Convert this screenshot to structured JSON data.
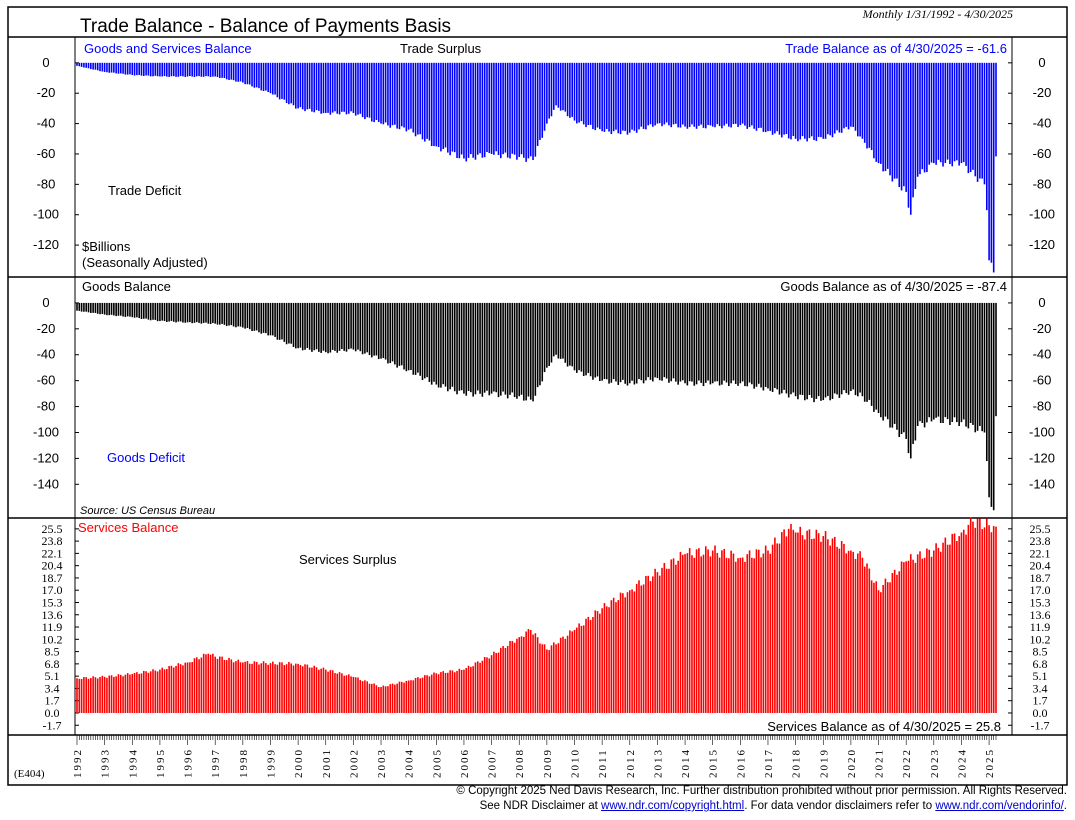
{
  "header": {
    "title": "Trade Balance - Balance of Payments Basis",
    "range": "Monthly 1/31/1992 - 4/30/2025",
    "code": "(E404)"
  },
  "footer": {
    "line1": "© Copyright 2025 Ned Davis Research, Inc.  Further distribution prohibited without prior permission.  All Rights Reserved.",
    "line2_pre": "See NDR Disclaimer at ",
    "link1": "www.ndr.com/copyright.html",
    "line2_mid": ". For data vendor disclaimers refer to ",
    "link2": "www.ndr.com/vendorinfo/",
    "line2_post": "."
  },
  "chart_data": [
    {
      "type": "bar",
      "name": "trade",
      "title": "Goods and Services Balance",
      "annotations": [
        "Trade Surplus",
        "Trade Deficit",
        "$Billions",
        "(Seasonally Adjusted)"
      ],
      "latest_label": "Trade Balance as of 4/30/2025 = -61.6",
      "color": "#0000ff",
      "title_color": "#0000ff",
      "ylim": [
        -141,
        17
      ],
      "yticks": [
        "0",
        "-20",
        "-40",
        "-60",
        "-80",
        "-100",
        "-120"
      ],
      "ytick_values": [
        0,
        -20,
        -40,
        -60,
        -80,
        -100,
        -120
      ],
      "anchors": [
        [
          "1992-01",
          -2
        ],
        [
          "1993-01",
          -6
        ],
        [
          "1994-01",
          -8
        ],
        [
          "1995-01",
          -9
        ],
        [
          "1996-01",
          -9
        ],
        [
          "1997-01",
          -9
        ],
        [
          "1998-01",
          -13
        ],
        [
          "1999-01",
          -20
        ],
        [
          "2000-01",
          -30
        ],
        [
          "2001-01",
          -33
        ],
        [
          "2002-01",
          -33
        ],
        [
          "2003-01",
          -40
        ],
        [
          "2004-01",
          -44
        ],
        [
          "2005-01",
          -55
        ],
        [
          "2006-01",
          -63
        ],
        [
          "2007-01",
          -60
        ],
        [
          "2008-01",
          -62
        ],
        [
          "2008-07",
          -64
        ],
        [
          "2009-01",
          -40
        ],
        [
          "2009-05",
          -28
        ],
        [
          "2010-01",
          -38
        ],
        [
          "2011-01",
          -45
        ],
        [
          "2012-01",
          -46
        ],
        [
          "2013-01",
          -40
        ],
        [
          "2014-01",
          -42
        ],
        [
          "2015-01",
          -42
        ],
        [
          "2016-01",
          -41
        ],
        [
          "2017-01",
          -45
        ],
        [
          "2018-01",
          -50
        ],
        [
          "2019-01",
          -50
        ],
        [
          "2020-01",
          -42
        ],
        [
          "2020-06",
          -50
        ],
        [
          "2021-01",
          -66
        ],
        [
          "2022-01",
          -85
        ],
        [
          "2022-03",
          -100
        ],
        [
          "2022-06",
          -75
        ],
        [
          "2023-01",
          -66
        ],
        [
          "2024-01",
          -66
        ],
        [
          "2024-11",
          -80
        ],
        [
          "2024-12",
          -97
        ],
        [
          "2025-01",
          -130
        ],
        [
          "2025-03",
          -138
        ],
        [
          "2025-04",
          -61.6
        ]
      ]
    },
    {
      "type": "bar",
      "name": "goods",
      "title": "Goods Balance",
      "annotations": [
        "Goods Deficit",
        "Source: US Census Bureau"
      ],
      "latest_label": "Goods Balance as of 4/30/2025 = -87.4",
      "color": "#000000",
      "title_color": "#000000",
      "ylim": [
        -166,
        20
      ],
      "yticks": [
        "0",
        "-20",
        "-40",
        "-60",
        "-80",
        "-100",
        "-120",
        "-140"
      ],
      "ytick_values": [
        0,
        -20,
        -40,
        -60,
        -80,
        -100,
        -120,
        -140
      ],
      "anchors": [
        [
          "1992-01",
          -6
        ],
        [
          "1993-01",
          -9
        ],
        [
          "1994-01",
          -11
        ],
        [
          "1995-01",
          -14
        ],
        [
          "1996-01",
          -15
        ],
        [
          "1997-01",
          -16
        ],
        [
          "1998-01",
          -19
        ],
        [
          "1999-01",
          -25
        ],
        [
          "2000-01",
          -35
        ],
        [
          "2001-01",
          -38
        ],
        [
          "2002-01",
          -36
        ],
        [
          "2003-01",
          -43
        ],
        [
          "2004-01",
          -52
        ],
        [
          "2005-01",
          -63
        ],
        [
          "2006-01",
          -70
        ],
        [
          "2007-01",
          -70
        ],
        [
          "2008-01",
          -72
        ],
        [
          "2008-07",
          -76
        ],
        [
          "2009-01",
          -50
        ],
        [
          "2009-05",
          -40
        ],
        [
          "2010-01",
          -52
        ],
        [
          "2011-01",
          -60
        ],
        [
          "2012-01",
          -62
        ],
        [
          "2013-01",
          -58
        ],
        [
          "2014-01",
          -62
        ],
        [
          "2015-01",
          -62
        ],
        [
          "2016-01",
          -62
        ],
        [
          "2017-01",
          -66
        ],
        [
          "2018-01",
          -72
        ],
        [
          "2019-01",
          -75
        ],
        [
          "2020-01",
          -68
        ],
        [
          "2020-06",
          -72
        ],
        [
          "2021-01",
          -85
        ],
        [
          "2022-01",
          -105
        ],
        [
          "2022-03",
          -120
        ],
        [
          "2022-06",
          -95
        ],
        [
          "2023-01",
          -90
        ],
        [
          "2024-01",
          -92
        ],
        [
          "2024-11",
          -100
        ],
        [
          "2024-12",
          -122
        ],
        [
          "2025-01",
          -150
        ],
        [
          "2025-03",
          -160
        ],
        [
          "2025-04",
          -87.4
        ]
      ]
    },
    {
      "type": "bar",
      "name": "services",
      "title": "Services Balance",
      "annotations": [
        "Services Surplus"
      ],
      "latest_label": "Services Balance as of 4/30/2025 = 25.8",
      "color": "#ff0000",
      "title_color": "#ff0000",
      "ylim": [
        -3.05,
        27
      ],
      "yticks": [
        "25.5",
        "23.8",
        "22.1",
        "20.4",
        "18.7",
        "17.0",
        "15.3",
        "13.6",
        "11.9",
        "10.2",
        "8.5",
        "6.8",
        "5.1",
        "3.4",
        "1.7",
        "0.0",
        "-1.7"
      ],
      "ytick_values": [
        25.5,
        23.8,
        22.1,
        20.4,
        18.7,
        17.0,
        15.3,
        13.6,
        11.9,
        10.2,
        8.5,
        6.8,
        5.1,
        3.4,
        1.7,
        0.0,
        -1.7
      ],
      "anchors": [
        [
          "1992-01",
          4.8
        ],
        [
          "1993-01",
          5.0
        ],
        [
          "1994-01",
          5.4
        ],
        [
          "1995-01",
          6.0
        ],
        [
          "1996-01",
          7.0
        ],
        [
          "1996-10",
          8.2
        ],
        [
          "1997-01",
          7.8
        ],
        [
          "1998-01",
          7.0
        ],
        [
          "1999-01",
          6.9
        ],
        [
          "2000-01",
          6.8
        ],
        [
          "2001-01",
          6.0
        ],
        [
          "2002-01",
          5.0
        ],
        [
          "2003-01",
          3.6
        ],
        [
          "2004-01",
          4.5
        ],
        [
          "2005-01",
          5.5
        ],
        [
          "2006-01",
          6.0
        ],
        [
          "2007-01",
          8.0
        ],
        [
          "2008-01",
          10.5
        ],
        [
          "2008-06",
          11.5
        ],
        [
          "2009-01",
          8.8
        ],
        [
          "2010-01",
          11.5
        ],
        [
          "2011-01",
          14.5
        ],
        [
          "2012-01",
          17.0
        ],
        [
          "2013-01",
          19.5
        ],
        [
          "2014-01",
          22.0
        ],
        [
          "2015-01",
          22.5
        ],
        [
          "2016-01",
          21.5
        ],
        [
          "2017-01",
          22.5
        ],
        [
          "2017-10",
          25.5
        ],
        [
          "2018-01",
          25.0
        ],
        [
          "2019-01",
          24.5
        ],
        [
          "2020-01",
          22.5
        ],
        [
          "2020-06",
          21.5
        ],
        [
          "2021-01",
          17.0
        ],
        [
          "2022-01",
          21.0
        ],
        [
          "2023-01",
          22.5
        ],
        [
          "2024-01",
          25.0
        ],
        [
          "2024-06",
          26.5
        ],
        [
          "2025-01",
          26.0
        ],
        [
          "2025-04",
          25.8
        ]
      ]
    }
  ],
  "x_axis": {
    "start": "1992-01",
    "end": "2025-04",
    "years": [
      "1992",
      "1993",
      "1994",
      "1995",
      "1996",
      "1997",
      "1998",
      "1999",
      "2000",
      "2001",
      "2002",
      "2003",
      "2004",
      "2005",
      "2006",
      "2007",
      "2008",
      "2009",
      "2010",
      "2011",
      "2012",
      "2013",
      "2014",
      "2015",
      "2016",
      "2017",
      "2018",
      "2019",
      "2020",
      "2021",
      "2022",
      "2023",
      "2024",
      "2025"
    ]
  }
}
